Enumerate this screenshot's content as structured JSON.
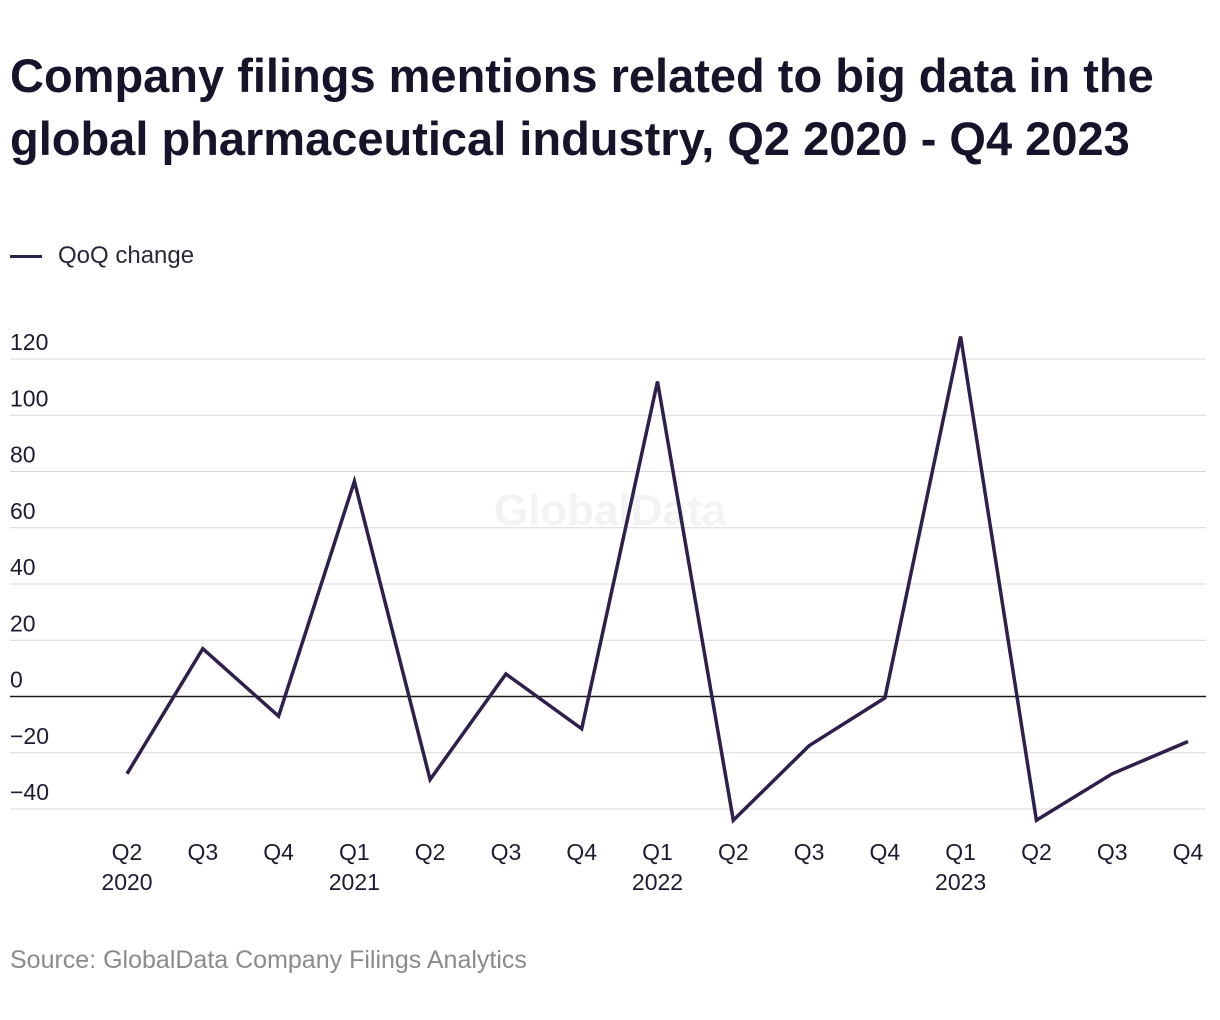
{
  "title": "Company filings mentions related to big data in the global pharmaceutical industry, Q2 2020 - Q4 2023",
  "source": "Source: GlobalData Company Filings Analytics",
  "watermark": "GlobalData",
  "colors": {
    "line": "#2e1f4d",
    "grid": "#d9d9d9",
    "zero_line": "#1a1a1a",
    "text": "#1d1b33",
    "source_text": "#8a8a8f"
  },
  "chart_data": {
    "type": "line",
    "title": "Company filings mentions related to big data in the global pharmaceutical industry, Q2 2020 - Q4 2023",
    "xlabel": "",
    "ylabel": "",
    "ylim": [
      -40,
      120
    ],
    "yticks": [
      -40,
      -20,
      0,
      20,
      40,
      60,
      80,
      100,
      120
    ],
    "ytick_labels": [
      "−40",
      "−20",
      "0",
      "20",
      "40",
      "60",
      "80",
      "100",
      "120"
    ],
    "grid": true,
    "legend_position": "top-left",
    "categories": [
      "Q2 2020",
      "Q3 2020",
      "Q4 2020",
      "Q1 2021",
      "Q2 2021",
      "Q3 2021",
      "Q4 2021",
      "Q1 2022",
      "Q2 2022",
      "Q3 2022",
      "Q4 2022",
      "Q1 2023",
      "Q2 2023",
      "Q3 2023",
      "Q4 2023"
    ],
    "tick_quarters": [
      "Q2",
      "Q3",
      "Q4",
      "Q1",
      "Q2",
      "Q3",
      "Q4",
      "Q1",
      "Q2",
      "Q3",
      "Q4",
      "Q1",
      "Q2",
      "Q3",
      "Q4"
    ],
    "tick_years": [
      "2020",
      "",
      "",
      "2021",
      "",
      "",
      "",
      "2022",
      "",
      "",
      "",
      "2023",
      "",
      "",
      ""
    ],
    "series": [
      {
        "name": "QoQ change",
        "color": "#2e1f4d",
        "values": [
          -27.5,
          17,
          -7,
          76.5,
          -29.5,
          8,
          -11.5,
          112,
          -44,
          -17.5,
          -0.5,
          128,
          -44,
          -27.5,
          -16
        ]
      }
    ]
  }
}
